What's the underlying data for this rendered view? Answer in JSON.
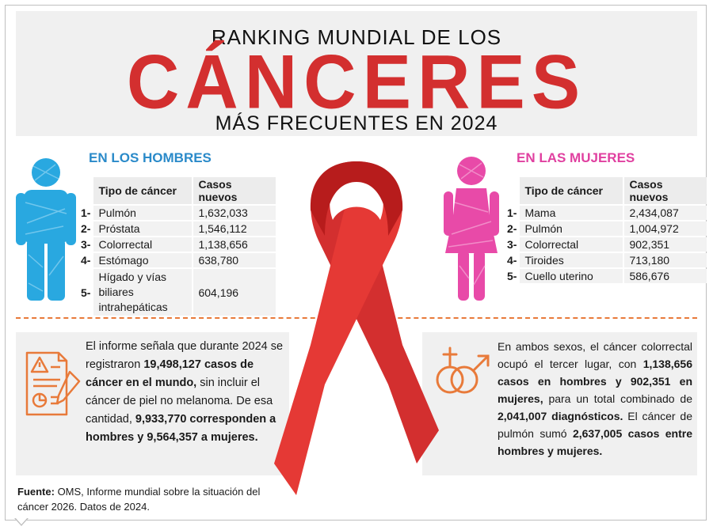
{
  "header": {
    "title_top": "RANKING MUNDIAL DE LOS",
    "title_main": "CÁNCERES",
    "title_bottom": "MÁS FRECUENTES EN 2024"
  },
  "men": {
    "title": "EN LOS HOMBRES",
    "col_type": "Tipo de cáncer",
    "col_cases": "Casos nuevos",
    "rows": [
      {
        "rank": "1-",
        "type": "Pulmón",
        "cases": "1,632,033"
      },
      {
        "rank": "2-",
        "type": "Próstata",
        "cases": "1,546,112"
      },
      {
        "rank": "3-",
        "type": "Colorrectal",
        "cases": "1,138,656"
      },
      {
        "rank": "4-",
        "type": "Estómago",
        "cases": "638,780"
      },
      {
        "rank": "5-",
        "type": "Hígado y vías biliares intrahepáticas",
        "cases": "604,196"
      }
    ]
  },
  "women": {
    "title": "EN LAS MUJERES",
    "col_type": "Tipo de cáncer",
    "col_cases": "Casos nuevos",
    "rows": [
      {
        "rank": "1-",
        "type": "Mama",
        "cases": "2,434,087"
      },
      {
        "rank": "2-",
        "type": "Pulmón",
        "cases": "1,004,972"
      },
      {
        "rank": "3-",
        "type": "Colorrectal",
        "cases": "902,351"
      },
      {
        "rank": "4-",
        "type": "Tiroides",
        "cases": "713,180"
      },
      {
        "rank": "5-",
        "type": "Cuello uterino",
        "cases": "586,676"
      }
    ]
  },
  "left_box": {
    "t1": "El informe señala que durante 2024 se registraron ",
    "b1": "19,498,127 casos de cáncer en el mundo,",
    "t2": " sin incluir el cáncer de piel no melanoma. De esa cantidad, ",
    "b2": "9,933,770 corresponden a hombres y 9,564,357 a mujeres."
  },
  "right_box": {
    "t1": "En ambos sexos, el cáncer colorrectal ocupó el tercer lugar, con ",
    "b1": "1,138,656 casos en hombres y 902,351 en mujeres,",
    "t2": " para un total combinado de ",
    "b2": "2,041,007 diagnósticos.",
    "t3": " El cáncer de pulmón sumó ",
    "b3": "2,637,005 casos entre hombres y mujeres."
  },
  "source": {
    "label": "Fuente:",
    "text": " OMS, Informe mundial sobre la situación del cáncer 2026. Datos de 2024."
  },
  "icons": {
    "man": "man-icon",
    "woman": "woman-icon",
    "ribbon": "awareness-ribbon-icon",
    "report": "report-document-icon",
    "gender": "gender-symbols-icon"
  },
  "colors": {
    "red": "#d32f2f",
    "blue": "#29a8e0",
    "pink": "#e84aa8",
    "orange": "#e87a3a"
  }
}
